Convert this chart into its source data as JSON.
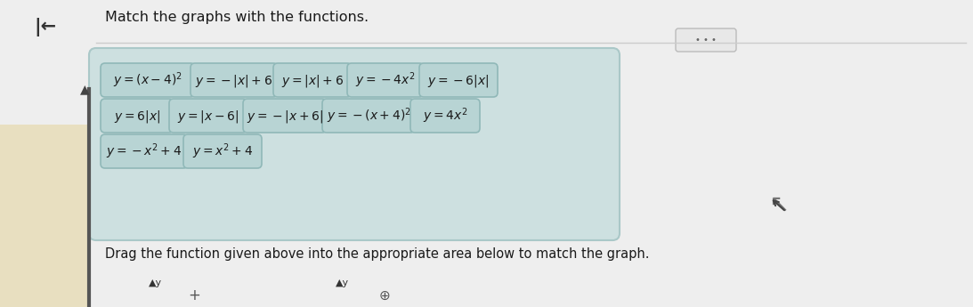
{
  "title": "Match the graphs with the functions.",
  "instruction": "Drag the function given above into the appropriate area below to match the graph.",
  "row1_labels": [
    "$y=(x-4)^2$",
    "$y=-|x|+6$",
    "$y=|x|+6$",
    "$y=-4x^2$",
    "$y=-6|x|$"
  ],
  "row2_labels": [
    "$y=6|x|$",
    "$y=|x-6|$",
    "$y=-|x+6|$",
    "$y=-(x+4)^2$",
    "$y=4x^2$"
  ],
  "row3_labels": [
    "$y=-x^2+4$",
    "$y=x^2+4$"
  ],
  "page_bg": "#eeeeee",
  "left_panel_bg": "#e8dfc0",
  "outer_box_bg": "#cde0e0",
  "outer_box_border": "#aac8c8",
  "card_bg": "#b8d4d4",
  "card_border": "#90b8b8",
  "text_color": "#1a1a1a",
  "separator_color": "#cccccc",
  "dots_bg": "#e8e8e8",
  "dots_border": "#bbbbbb",
  "dots_color": "#666666",
  "arrow_color": "#333333",
  "cursor_color": "#444444",
  "bottom_icon_color": "#777777"
}
